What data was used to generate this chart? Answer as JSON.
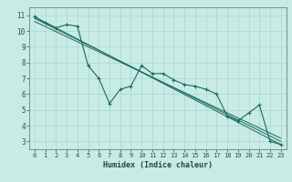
{
  "title": "",
  "xlabel": "Humidex (Indice chaleur)",
  "ylabel": "",
  "bg_color": "#c8ebe6",
  "line_color": "#1a6b5a",
  "grid_color": "#a8d8d0",
  "xlim": [
    -0.5,
    23.5
  ],
  "ylim": [
    2.5,
    11.5
  ],
  "xticks": [
    0,
    1,
    2,
    3,
    4,
    5,
    6,
    7,
    8,
    9,
    10,
    11,
    12,
    13,
    14,
    15,
    16,
    17,
    18,
    19,
    20,
    21,
    22,
    23
  ],
  "yticks": [
    3,
    4,
    5,
    6,
    7,
    8,
    9,
    10,
    11
  ],
  "series": [
    [
      0,
      10.9
    ],
    [
      1,
      10.5
    ],
    [
      2,
      10.2
    ],
    [
      3,
      10.4
    ],
    [
      4,
      10.3
    ],
    [
      5,
      7.8
    ],
    [
      6,
      7.0
    ],
    [
      7,
      5.4
    ],
    [
      8,
      6.3
    ],
    [
      9,
      6.5
    ],
    [
      10,
      7.8
    ],
    [
      11,
      7.3
    ],
    [
      12,
      7.3
    ],
    [
      13,
      6.9
    ],
    [
      14,
      6.6
    ],
    [
      15,
      6.5
    ],
    [
      16,
      6.3
    ],
    [
      17,
      6.0
    ],
    [
      18,
      4.6
    ],
    [
      19,
      4.3
    ],
    [
      20,
      4.8
    ],
    [
      21,
      5.3
    ],
    [
      22,
      3.0
    ],
    [
      23,
      2.8
    ]
  ],
  "trend_series": [
    [
      [
        0,
        10.9
      ],
      [
        23,
        2.8
      ]
    ],
    [
      [
        0,
        10.6
      ],
      [
        23,
        3.2
      ]
    ],
    [
      [
        0,
        10.8
      ],
      [
        23,
        3.0
      ]
    ]
  ]
}
